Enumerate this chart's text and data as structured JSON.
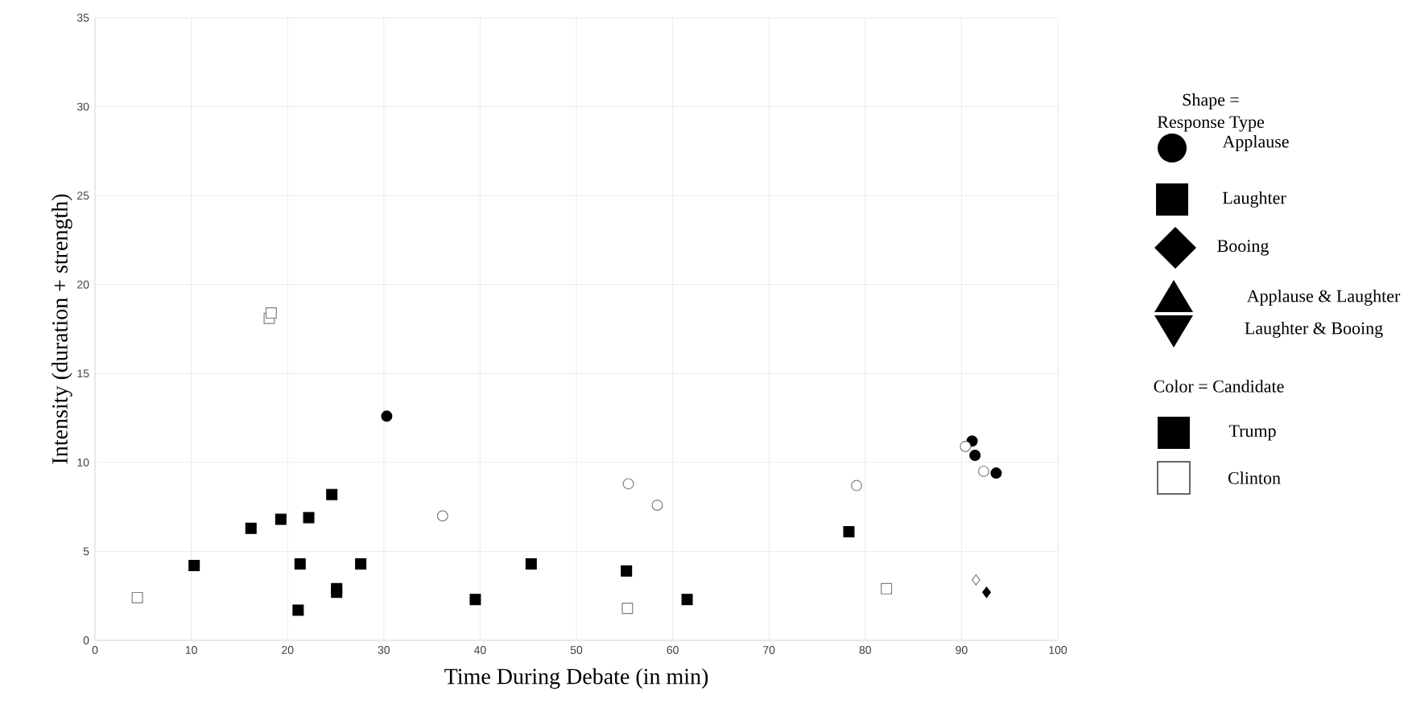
{
  "chart_data": {
    "type": "scatter",
    "xlabel": "Time During Debate (in min)",
    "ylabel": "Intensity (duration + strength)",
    "xlim": [
      0,
      100
    ],
    "xticks": [
      0,
      10,
      20,
      30,
      40,
      50,
      60,
      70,
      80,
      90,
      100
    ],
    "ylim": [
      0,
      35
    ],
    "yticks": [
      0,
      5,
      10,
      15,
      20,
      25,
      30,
      35
    ],
    "grid": true,
    "annotations": [
      "Shape =",
      "Response Type",
      "Applause",
      "Laughter",
      "Booing",
      "Applause & Laughter",
      "Laughter & Booing",
      "Color = Candidate",
      "Trump",
      "Clinton"
    ],
    "series": [
      {
        "marker": "square",
        "color": "#000000",
        "x": [
          10.3,
          16.2,
          19.3,
          22.2,
          24.6,
          21.3,
          27.6,
          25.1,
          25.1,
          21.1,
          39.5,
          45.3,
          55.2,
          61.5,
          78.3
        ],
        "values": [
          4.2,
          6.3,
          6.8,
          6.9,
          8.2,
          4.3,
          4.3,
          2.9,
          2.7,
          1.7,
          2.3,
          4.3,
          3.9,
          2.3,
          6.1
        ]
      },
      {
        "marker": "circle",
        "color": "#000000",
        "x": [
          30.3,
          91.1,
          91.4,
          93.6
        ],
        "values": [
          12.6,
          11.2,
          10.4,
          9.4
        ]
      },
      {
        "marker": "diamond",
        "color": "#000000",
        "x": [
          92.6
        ],
        "values": [
          2.7
        ]
      },
      {
        "marker": "square",
        "color": "#ffffff",
        "x": [
          4.4,
          18.1,
          18.3,
          55.3,
          82.2
        ],
        "values": [
          2.4,
          18.1,
          18.4,
          1.8,
          2.9
        ]
      },
      {
        "marker": "circle",
        "color": "#ffffff",
        "x": [
          36.1,
          55.4,
          58.4,
          79.1,
          90.4,
          92.3
        ],
        "values": [
          7.0,
          8.8,
          7.6,
          8.7,
          10.9,
          9.5
        ]
      },
      {
        "marker": "diamond",
        "color": "#ffffff",
        "x": [
          91.5
        ],
        "values": [
          3.4
        ]
      }
    ]
  }
}
